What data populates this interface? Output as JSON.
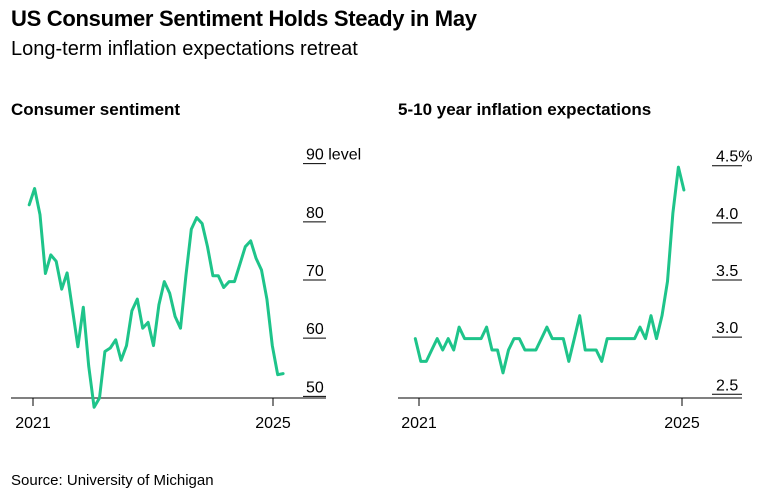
{
  "title": "US Consumer Sentiment Holds Steady in May",
  "subtitle": "Long-term inflation expectations retreat",
  "source": "Source: University of Michigan",
  "line_color": "#1ec48a",
  "chart_data": [
    {
      "type": "line",
      "title": "Consumer sentiment",
      "x_ticks": [
        "2021",
        "2025"
      ],
      "y_ticks": [
        "90 level",
        "80",
        "70",
        "60",
        "50"
      ],
      "y_tick_values": [
        90,
        80,
        70,
        60,
        50
      ],
      "ylim": [
        48,
        92
      ],
      "x_start": 2021.0,
      "x_step": 0.083333,
      "xlim": [
        2020.95,
        2025.1
      ],
      "values": [
        81.2,
        84.0,
        79.5,
        69.4,
        72.6,
        71.5,
        66.7,
        69.5,
        63.2,
        56.8,
        63.6,
        53.5,
        46.4,
        48.0,
        56.0,
        56.6,
        58.0,
        54.5,
        57.0,
        63.0,
        65.0,
        60.0,
        61.0,
        57.0,
        64.0,
        68.0,
        66.0,
        62.0,
        60.0,
        69.0,
        77.0,
        79.0,
        78.0,
        74.0,
        69.0,
        69.0,
        67.0,
        68.0,
        68.0,
        71.0,
        74.0,
        75.0,
        72.0,
        70.0,
        65.0,
        57.0,
        52.0,
        52.2
      ]
    },
    {
      "type": "line",
      "title": "5-10 year inflation expectations",
      "x_ticks": [
        "2021",
        "2025"
      ],
      "y_ticks": [
        "4.5%",
        "4.0",
        "3.5",
        "3.0",
        "2.5"
      ],
      "y_tick_values": [
        4.5,
        4.0,
        3.5,
        3.0,
        2.5
      ],
      "ylim": [
        2.38,
        4.62
      ],
      "x_start": 2021.0,
      "x_step": 0.083333,
      "xlim": [
        2020.95,
        2025.1
      ],
      "values": [
        2.9,
        2.7,
        2.7,
        2.8,
        2.9,
        2.8,
        2.9,
        2.8,
        3.0,
        2.9,
        2.9,
        2.9,
        2.9,
        3.0,
        2.8,
        2.8,
        2.6,
        2.8,
        2.9,
        2.9,
        2.8,
        2.8,
        2.8,
        2.9,
        3.0,
        2.9,
        2.9,
        2.9,
        2.7,
        2.9,
        3.1,
        2.8,
        2.8,
        2.8,
        2.7,
        2.9,
        2.9,
        2.9,
        2.9,
        2.9,
        2.9,
        3.0,
        2.9,
        3.1,
        2.9,
        3.1,
        3.4,
        4.0,
        4.4,
        4.2
      ]
    }
  ]
}
